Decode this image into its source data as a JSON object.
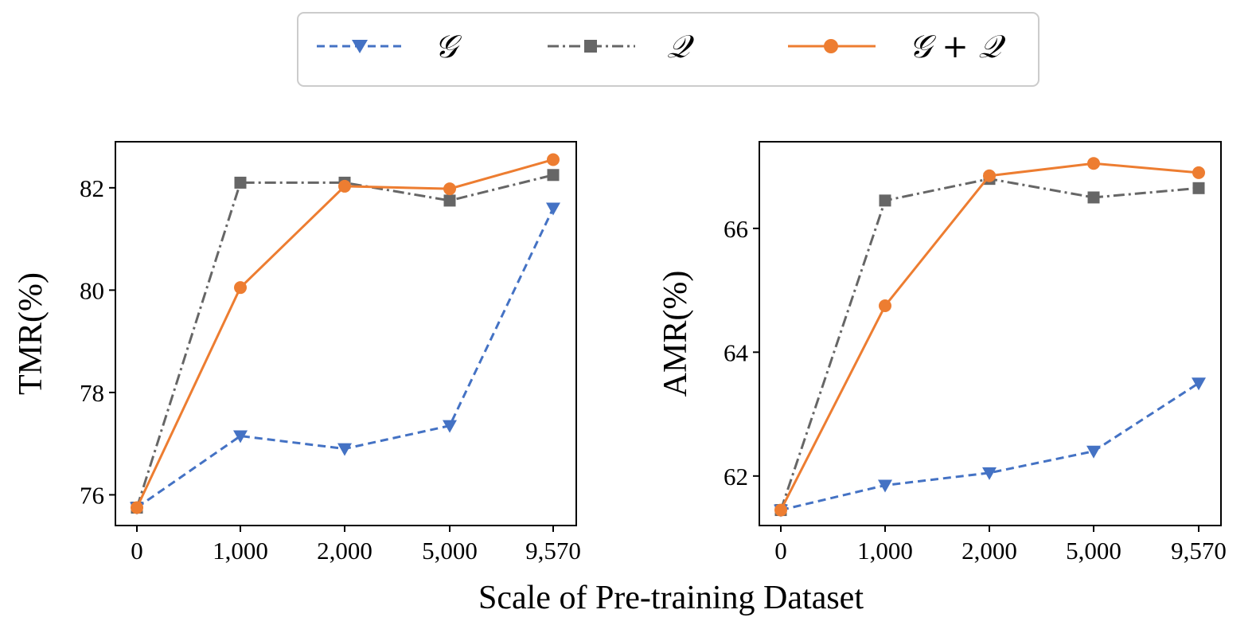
{
  "chart_data": [
    {
      "type": "line",
      "ylabel": "TMR(%)",
      "categories": [
        "0",
        "1,000",
        "2,000",
        "5,000",
        "9,570"
      ],
      "ylim": [
        75.4,
        82.9
      ],
      "yticks": [
        76,
        78,
        80,
        82
      ],
      "ytick_labels": [
        "76",
        "78",
        "80",
        "82"
      ],
      "series": [
        {
          "name": "𝒢",
          "values": [
            75.75,
            77.15,
            76.9,
            77.35,
            81.6
          ]
        },
        {
          "name": "𝒬",
          "values": [
            75.75,
            82.1,
            82.1,
            81.75,
            82.25
          ]
        },
        {
          "name": "𝒢 + 𝒬",
          "values": [
            75.75,
            80.05,
            82.03,
            81.98,
            82.55
          ]
        }
      ]
    },
    {
      "type": "line",
      "ylabel": "AMR(%)",
      "categories": [
        "0",
        "1,000",
        "2,000",
        "5,000",
        "9,570"
      ],
      "ylim": [
        61.2,
        67.4
      ],
      "yticks": [
        62,
        64,
        66
      ],
      "ytick_labels": [
        "62",
        "64",
        "66"
      ],
      "series": [
        {
          "name": "𝒢",
          "values": [
            61.45,
            61.85,
            62.05,
            62.4,
            63.5
          ]
        },
        {
          "name": "𝒬",
          "values": [
            61.45,
            66.45,
            66.8,
            66.5,
            66.65
          ]
        },
        {
          "name": "𝒢 + 𝒬",
          "values": [
            61.45,
            64.75,
            66.85,
            67.05,
            66.9
          ]
        }
      ]
    }
  ],
  "shared_xlabel": "Scale of Pre-training Dataset",
  "legend": [
    {
      "label": "𝒢",
      "color": "#4472c4",
      "marker": "triangle-down",
      "style": "dashed"
    },
    {
      "label": "𝒬",
      "color": "#666666",
      "marker": "square",
      "style": "dashdot"
    },
    {
      "label": "𝒢 + 𝒬",
      "color": "#ed7d31",
      "marker": "circle",
      "style": "solid"
    }
  ]
}
